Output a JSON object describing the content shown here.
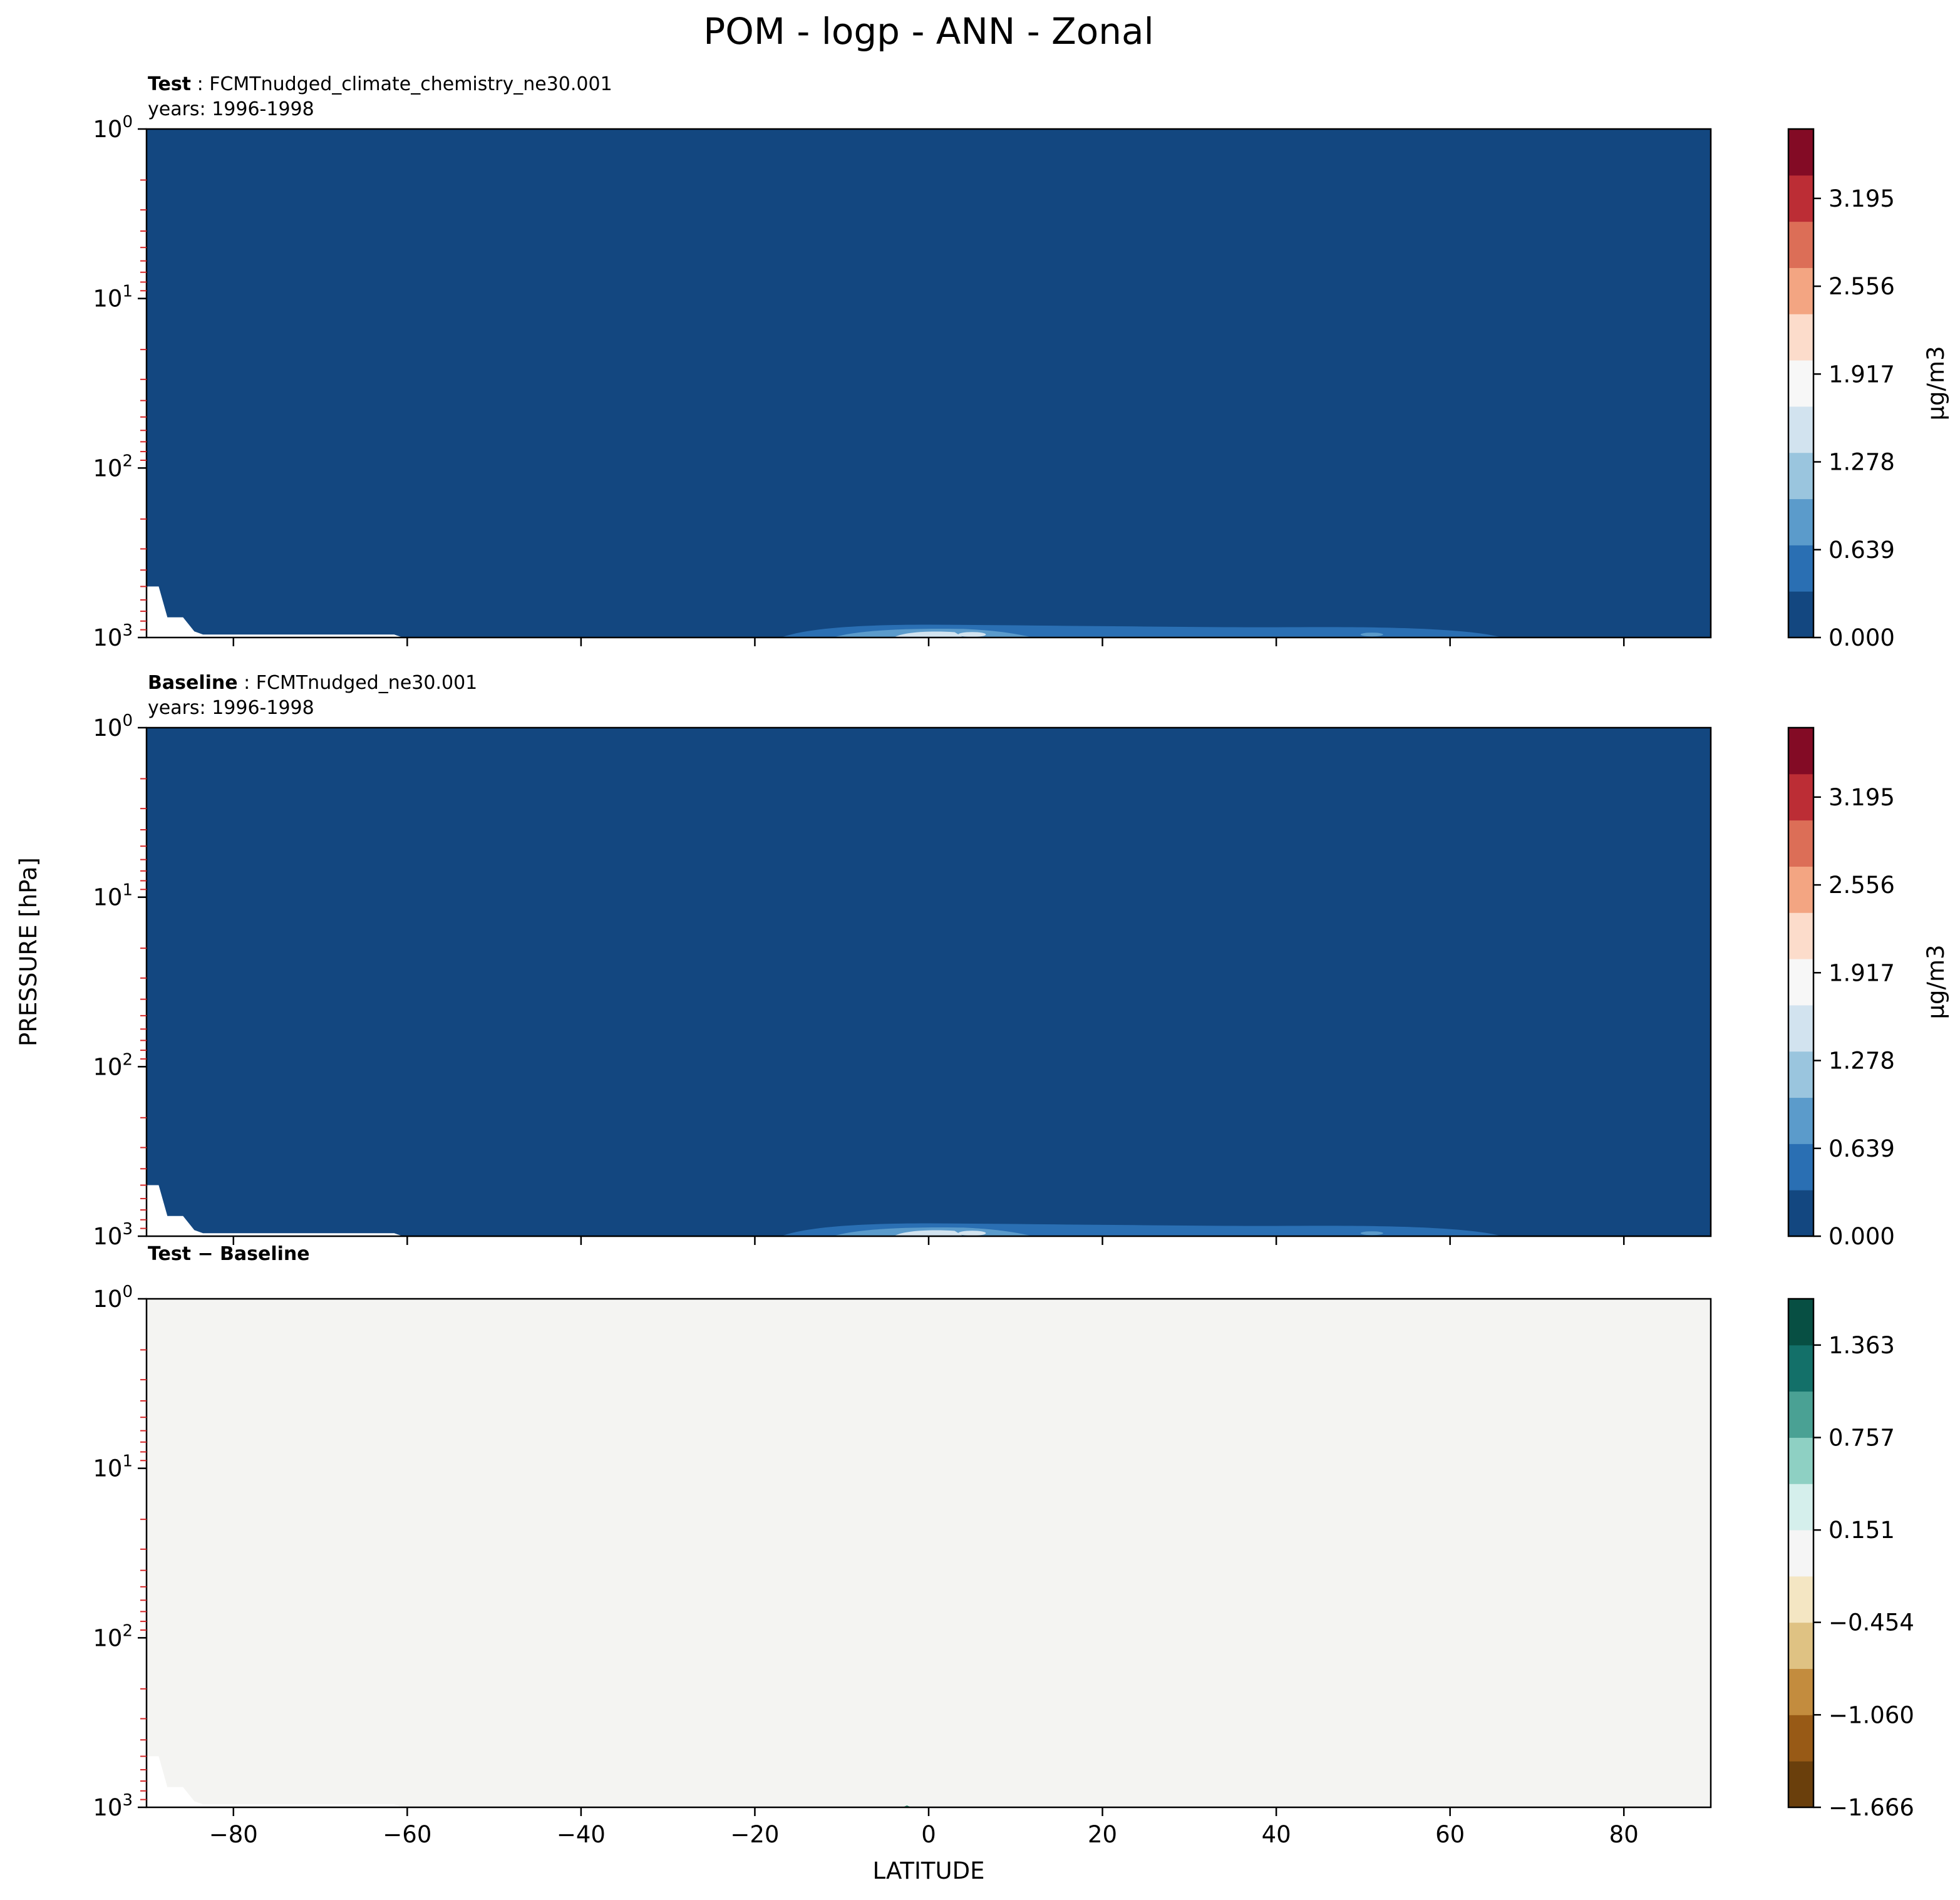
{
  "title": "POM - logp - ANN - Zonal",
  "ylabel": "PRESSURE [hPa]",
  "xlabel": "LATITUDE",
  "chart_data": [
    {
      "type": "heatmap",
      "panel": "test",
      "label_bold": "Test",
      "label_text": "FCMTnudged_climate_chemistry_ne30.001",
      "years": "years: 1996-1998",
      "xlim": [
        -90,
        90
      ],
      "ylim": [
        1000,
        1
      ],
      "yscale": "log",
      "yticks": [
        {
          "base": "10",
          "exp": "0"
        },
        {
          "base": "10",
          "exp": "1"
        },
        {
          "base": "10",
          "exp": "2"
        },
        {
          "base": "10",
          "exp": "3"
        }
      ],
      "background_color": "#134780",
      "colorbar": {
        "label": "μg/m3",
        "ticks": [
          "3.195",
          "2.556",
          "1.917",
          "1.278",
          "0.639",
          "0.000"
        ],
        "tick_values": [
          3.195,
          2.556,
          1.917,
          1.278,
          0.639,
          0.0
        ],
        "range": [
          0,
          3.7
        ],
        "colors": [
          "#134780",
          "#2a6fb3",
          "#5b9bcb",
          "#9ac5de",
          "#d2e3ef",
          "#f7f7f7",
          "#fcdccb",
          "#f3a582",
          "#dc6e57",
          "#bc2d35",
          "#830b25"
        ]
      }
    },
    {
      "type": "heatmap",
      "panel": "baseline",
      "label_bold": "Baseline",
      "label_text": "FCMTnudged_ne30.001",
      "years": "years: 1996-1998",
      "xlim": [
        -90,
        90
      ],
      "ylim": [
        1000,
        1
      ],
      "yscale": "log",
      "yticks": [
        {
          "base": "10",
          "exp": "0"
        },
        {
          "base": "10",
          "exp": "1"
        },
        {
          "base": "10",
          "exp": "2"
        },
        {
          "base": "10",
          "exp": "3"
        }
      ],
      "background_color": "#134780",
      "colorbar": {
        "label": "μg/m3",
        "ticks": [
          "3.195",
          "2.556",
          "1.917",
          "1.278",
          "0.639",
          "0.000"
        ],
        "tick_values": [
          3.195,
          2.556,
          1.917,
          1.278,
          0.639,
          0.0
        ],
        "range": [
          0,
          3.7
        ],
        "colors": [
          "#134780",
          "#2a6fb3",
          "#5b9bcb",
          "#9ac5de",
          "#d2e3ef",
          "#f7f7f7",
          "#fcdccb",
          "#f3a582",
          "#dc6e57",
          "#bc2d35",
          "#830b25"
        ]
      }
    },
    {
      "type": "heatmap",
      "panel": "diff",
      "label_bold": "Test − Baseline",
      "label_text": "",
      "years": "",
      "xlim": [
        -90,
        90
      ],
      "ylim": [
        1000,
        1
      ],
      "yscale": "log",
      "xticks": [
        "−80",
        "−60",
        "−40",
        "−20",
        "0",
        "20",
        "40",
        "60",
        "80"
      ],
      "xtick_values": [
        -80,
        -60,
        -40,
        -20,
        0,
        20,
        40,
        60,
        80
      ],
      "yticks": [
        {
          "base": "10",
          "exp": "0"
        },
        {
          "base": "10",
          "exp": "1"
        },
        {
          "base": "10",
          "exp": "2"
        },
        {
          "base": "10",
          "exp": "3"
        }
      ],
      "background_color": "#f4f4f2",
      "colorbar": {
        "label": "",
        "ticks": [
          "1.363",
          "0.757",
          "0.151",
          "−0.454",
          "−1.060",
          "−1.666"
        ],
        "tick_values": [
          1.363,
          0.757,
          0.151,
          -0.454,
          -1.06,
          -1.666
        ],
        "range": [
          -1.666,
          1.666
        ],
        "colors": [
          "#6a3f0c",
          "#985a16",
          "#c38c3e",
          "#dfc283",
          "#f4e6c3",
          "#f5f5f5",
          "#d5efec",
          "#8ed0c3",
          "#4aa194",
          "#137069",
          "#074f43"
        ]
      }
    }
  ]
}
